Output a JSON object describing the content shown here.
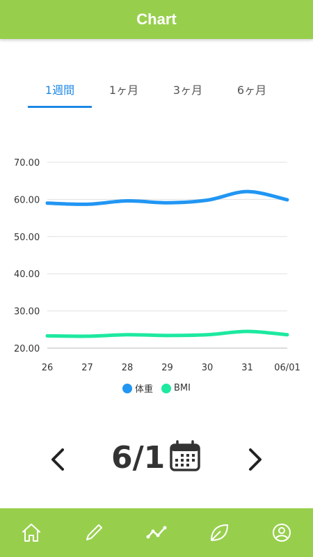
{
  "header": {
    "title": "Chart"
  },
  "tabs": [
    {
      "label": "1週間",
      "active": true
    },
    {
      "label": "1ヶ月",
      "active": false
    },
    {
      "label": "3ヶ月",
      "active": false
    },
    {
      "label": "6ヶ月",
      "active": false
    }
  ],
  "colors": {
    "header_bg": "#97cf4d",
    "active_tab": "#1e88e5",
    "weight_series": "#2196f3",
    "bmi_series": "#1de9a0"
  },
  "chart_data": {
    "type": "line",
    "x": [
      "26",
      "27",
      "28",
      "29",
      "30",
      "31",
      "06/01"
    ],
    "y_ticks": [
      "70.00",
      "60.00",
      "50.00",
      "40.00",
      "30.00",
      "20.00"
    ],
    "ylim": [
      20,
      70
    ],
    "series": [
      {
        "name": "体重",
        "values": [
          59.0,
          58.7,
          59.6,
          59.1,
          59.8,
          62.1,
          59.9
        ]
      },
      {
        "name": "BMI",
        "values": [
          23.3,
          23.2,
          23.6,
          23.4,
          23.6,
          24.5,
          23.6
        ]
      }
    ],
    "legend": "bottom",
    "grid": true
  },
  "date_nav": {
    "date": "6/1"
  },
  "bottom_nav": {
    "items": [
      "home-icon",
      "pencil-icon",
      "chart-line-icon",
      "leaf-icon",
      "profile-icon"
    ]
  }
}
